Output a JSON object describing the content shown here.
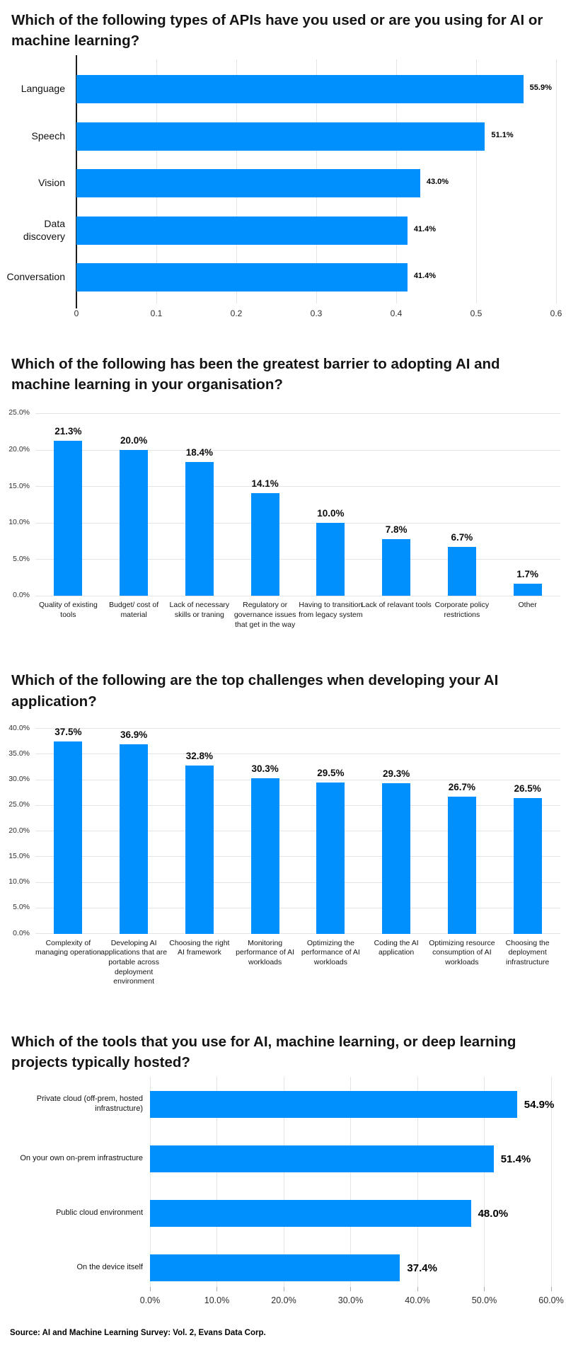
{
  "page": {
    "background": "#ffffff",
    "accent": "#0090fe",
    "text_color": "#151515",
    "grid_color": "#e4e4e4",
    "source_note": "Source: AI and Machine Learning Survey: Vol. 2, Evans Data Corp."
  },
  "chart_data": [
    {
      "type": "bar",
      "orientation": "horizontal",
      "title": "Which of the following types of APIs have you used or are you using for AI or machine learning?",
      "categories": [
        "Language",
        "Speech",
        "Vision",
        "Data discovery",
        "Conversation"
      ],
      "values": [
        55.9,
        51.1,
        43.0,
        41.4,
        41.4
      ],
      "value_labels": [
        "55.9%",
        "51.1%",
        "43.0%",
        "41.4%",
        "41.4%"
      ],
      "axis_max": 60,
      "xlim": [
        0,
        0.6
      ],
      "tick_labels": [
        "0",
        "0.1",
        "0.2",
        "0.3",
        "0.4",
        "0.5",
        "0.6"
      ],
      "grid": true,
      "legend": "none",
      "bar_color": "#0090fe"
    },
    {
      "type": "bar",
      "orientation": "vertical",
      "title": "Which of the following has been the greatest barrier to adopting AI and machine learning in your organisation?",
      "categories": [
        "Quality of existing tools",
        "Budget/ cost of material",
        "Lack of necessary skills or traning",
        "Regulatory or governance issues that get in the way",
        "Having to transition from legacy system",
        "Lack of relavant tools",
        "Corporate policy restrictions",
        "Other"
      ],
      "values": [
        21.3,
        20.0,
        18.4,
        14.1,
        10.0,
        7.8,
        6.7,
        1.7
      ],
      "value_labels": [
        "21.3%",
        "20.0%",
        "18.4%",
        "14.1%",
        "10.0%",
        "7.8%",
        "6.7%",
        "1.7%"
      ],
      "axis_max": 25,
      "ylim": [
        0,
        25
      ],
      "tick_labels": [
        "25.0%",
        "20.0%",
        "15.0%",
        "10.0%",
        "5.0%",
        "0.0%"
      ],
      "grid": true,
      "legend": "none",
      "bar_color": "#0090fe"
    },
    {
      "type": "bar",
      "orientation": "vertical",
      "title": "Which of the following are the top challenges when developing your AI application?",
      "categories": [
        "Complexity of managing operation",
        "Developing AI applications that are portable across deployment environment",
        "Choosing the right AI framework",
        "Monitoring performance of AI workloads",
        "Optimizing the performance of AI workloads",
        "Coding the AI application",
        "Optimizing resource consumption of AI workloads",
        "Choosing the deployment infrastructure"
      ],
      "values": [
        37.5,
        36.9,
        32.8,
        30.3,
        29.5,
        29.3,
        26.7,
        26.5
      ],
      "value_labels": [
        "37.5%",
        "36.9%",
        "32.8%",
        "30.3%",
        "29.5%",
        "29.3%",
        "26.7%",
        "26.5%"
      ],
      "axis_max": 40,
      "ylim": [
        0,
        40
      ],
      "tick_labels": [
        "40.0%",
        "35.0%",
        "30.0%",
        "25.0%",
        "20.0%",
        "15.0%",
        "10.0%",
        "5.0%",
        "0.0%"
      ],
      "grid": true,
      "legend": "none",
      "bar_color": "#0090fe"
    },
    {
      "type": "bar",
      "orientation": "horizontal",
      "title": "Which of the tools that you use for AI, machine learning, or deep learning projects typically hosted?",
      "categories": [
        "Private cloud (off-prem, hosted infrastructure)",
        "On your own on-prem infrastructure",
        "Public cloud environment",
        "On the device itself"
      ],
      "values": [
        54.9,
        51.4,
        48.0,
        37.4
      ],
      "value_labels": [
        "54.9%",
        "51.4%",
        "48.0%",
        "37.4%"
      ],
      "axis_max": 60,
      "xlim": [
        0,
        60
      ],
      "tick_labels": [
        "0.0%",
        "10.0%",
        "20.0%",
        "30.0%",
        "40.0%",
        "50.0%",
        "60.0%"
      ],
      "grid": true,
      "legend": "none",
      "bar_color": "#0090fe"
    }
  ]
}
